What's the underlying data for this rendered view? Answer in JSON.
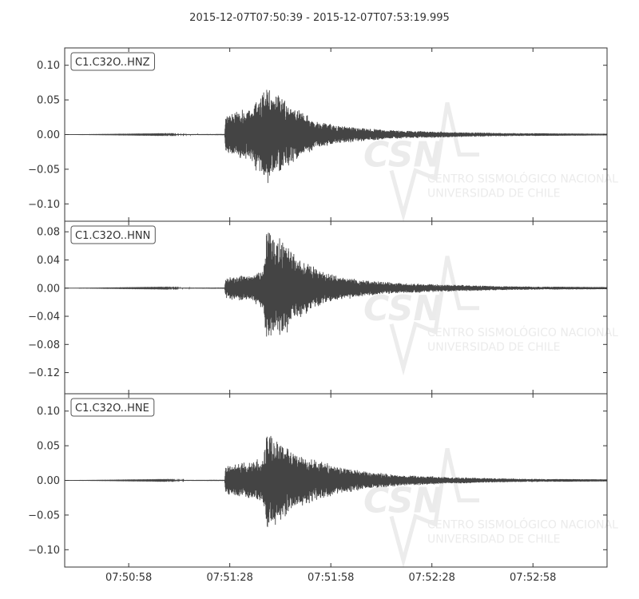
{
  "chart_data": {
    "type": "line",
    "title": "2015-12-07T07:50:39  -  2015-12-07T07:53:19.995",
    "x_start": "2015-12-07T07:50:39",
    "x_end": "2015-12-07T07:53:19.995",
    "x_tick_labels": [
      "07:50:58",
      "07:51:28",
      "07:51:58",
      "07:52:28",
      "07:52:58"
    ],
    "x_tick_seconds": [
      19,
      49,
      79,
      109,
      139
    ],
    "x_range_seconds": [
      0,
      160.995
    ],
    "line_color": "#444444",
    "grid": false,
    "watermark": {
      "logo": "CSN",
      "lines": [
        "CENTRO SISMOLÓGICO NACIONAL",
        "UNIVERSIDAD DE CHILE"
      ]
    },
    "series": [
      {
        "name": "C1.C32O..HNZ",
        "ylim": [
          -0.125,
          0.125
        ],
        "yticks": [
          -0.1,
          -0.05,
          0.0,
          0.05,
          0.1
        ],
        "ytick_labels": [
          "−0.10",
          "−0.05",
          "0.00",
          "0.05",
          "0.10"
        ],
        "onset_s": 47.8,
        "envelope": [
          [
            0,
            0.0
          ],
          [
            47.5,
            0.0008
          ],
          [
            47.8,
            0.03
          ],
          [
            50,
            0.033
          ],
          [
            55,
            0.04
          ],
          [
            60,
            0.074
          ],
          [
            62,
            0.066
          ],
          [
            66,
            0.05
          ],
          [
            70,
            0.035
          ],
          [
            75,
            0.02
          ],
          [
            82,
            0.013
          ],
          [
            90,
            0.009
          ],
          [
            100,
            0.006
          ],
          [
            115,
            0.004
          ],
          [
            130,
            0.0025
          ],
          [
            145,
            0.0017
          ],
          [
            161,
            0.0012
          ]
        ]
      },
      {
        "name": "C1.C32O..HNN",
        "ylim": [
          -0.15,
          0.095
        ],
        "yticks": [
          -0.12,
          -0.08,
          -0.04,
          0.0,
          0.04,
          0.08
        ],
        "ytick_labels": [
          "−0.12",
          "−0.08",
          "−0.04",
          "0.00",
          "0.04",
          "0.08"
        ],
        "onset_s": 47.8,
        "envelope": [
          [
            0,
            0.0
          ],
          [
            47.5,
            0.0008
          ],
          [
            47.8,
            0.015
          ],
          [
            50,
            0.018
          ],
          [
            55,
            0.02
          ],
          [
            59,
            0.03
          ],
          [
            60,
            0.09
          ],
          [
            62,
            0.085
          ],
          [
            65,
            0.07
          ],
          [
            70,
            0.045
          ],
          [
            75,
            0.028
          ],
          [
            82,
            0.017
          ],
          [
            90,
            0.011
          ],
          [
            100,
            0.0075
          ],
          [
            115,
            0.005
          ],
          [
            130,
            0.003
          ],
          [
            145,
            0.002
          ],
          [
            161,
            0.0015
          ]
        ]
      },
      {
        "name": "C1.C32O..HNE",
        "ylim": [
          -0.125,
          0.125
        ],
        "yticks": [
          -0.1,
          -0.05,
          0.0,
          0.05,
          0.1
        ],
        "ytick_labels": [
          "−0.10",
          "−0.05",
          "0.00",
          "0.05",
          "0.10"
        ],
        "onset_s": 47.8,
        "envelope": [
          [
            0,
            0.0
          ],
          [
            47.5,
            0.0008
          ],
          [
            47.8,
            0.022
          ],
          [
            50,
            0.025
          ],
          [
            55,
            0.028
          ],
          [
            59,
            0.035
          ],
          [
            60,
            0.075
          ],
          [
            62,
            0.07
          ],
          [
            65,
            0.055
          ],
          [
            70,
            0.04
          ],
          [
            75,
            0.03
          ],
          [
            82,
            0.02
          ],
          [
            90,
            0.013
          ],
          [
            100,
            0.008
          ],
          [
            115,
            0.005
          ],
          [
            130,
            0.003
          ],
          [
            145,
            0.002
          ],
          [
            161,
            0.0015
          ]
        ]
      }
    ]
  }
}
